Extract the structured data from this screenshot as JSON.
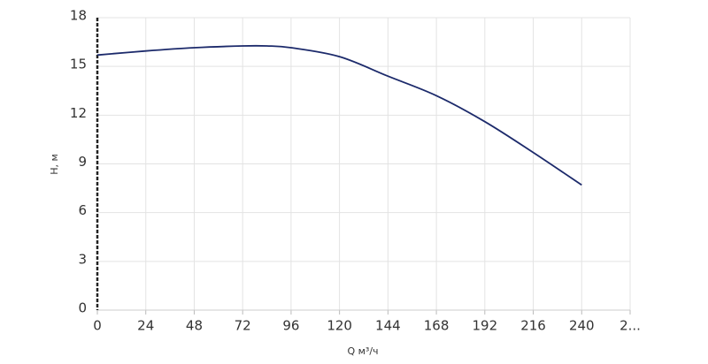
{
  "chart_data": {
    "type": "line",
    "x_label": "Q м³/ч",
    "y_label": "Н, м",
    "x": [
      0,
      24,
      48,
      72,
      84,
      96,
      120,
      144,
      168,
      192,
      216,
      240
    ],
    "series": [
      {
        "color": "#1c2a6b",
        "values": [
          15.7,
          15.95,
          16.15,
          16.26,
          16.26,
          16.15,
          15.6,
          14.4,
          13.2,
          11.6,
          9.7,
          7.7
        ]
      }
    ],
    "xlim": [
      0,
      264
    ],
    "xticks": [
      0,
      24,
      48,
      72,
      96,
      120,
      144,
      168,
      192,
      216,
      240,
      {
        "value": 264,
        "label": "2..."
      }
    ],
    "ylim": [
      0,
      18
    ],
    "yticks": [
      0,
      3,
      6,
      9,
      12,
      15,
      18
    ],
    "grid": true
  }
}
